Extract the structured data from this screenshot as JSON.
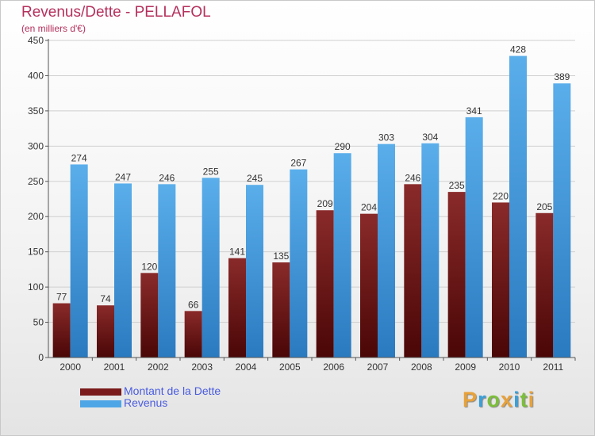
{
  "chart_data": {
    "type": "bar",
    "title": "Revenus/Dette - PELLAFOL",
    "subtitle": "(en milliers d'€)",
    "categories": [
      "2000",
      "2001",
      "2002",
      "2003",
      "2004",
      "2005",
      "2006",
      "2007",
      "2008",
      "2009",
      "2010",
      "2011"
    ],
    "series": [
      {
        "name": "Montant de la Dette",
        "color": "#7a1a1a",
        "values": [
          77,
          74,
          120,
          66,
          141,
          135,
          209,
          204,
          246,
          235,
          220,
          205
        ]
      },
      {
        "name": "Revenus",
        "color": "#4ea6e6",
        "values": [
          274,
          247,
          246,
          255,
          245,
          267,
          290,
          303,
          304,
          341,
          428,
          389
        ]
      }
    ],
    "ylim": [
      0,
      450
    ],
    "yticks": [
      0,
      50,
      100,
      150,
      200,
      250,
      300,
      350,
      400,
      450
    ],
    "grid": true,
    "legend_position": "bottom-left"
  },
  "branding": {
    "logo_text": "Proxiti",
    "logo_letters": [
      {
        "ch": "P",
        "color": "#e8a23a"
      },
      {
        "ch": "r",
        "color": "#3aa0d8"
      },
      {
        "ch": "o",
        "color": "#7cbf3a"
      },
      {
        "ch": "x",
        "color": "#e8a23a"
      },
      {
        "ch": "i",
        "color": "#3aa0d8"
      },
      {
        "ch": "t",
        "color": "#7cbf3a"
      },
      {
        "ch": "i",
        "color": "#e8a23a"
      }
    ]
  }
}
